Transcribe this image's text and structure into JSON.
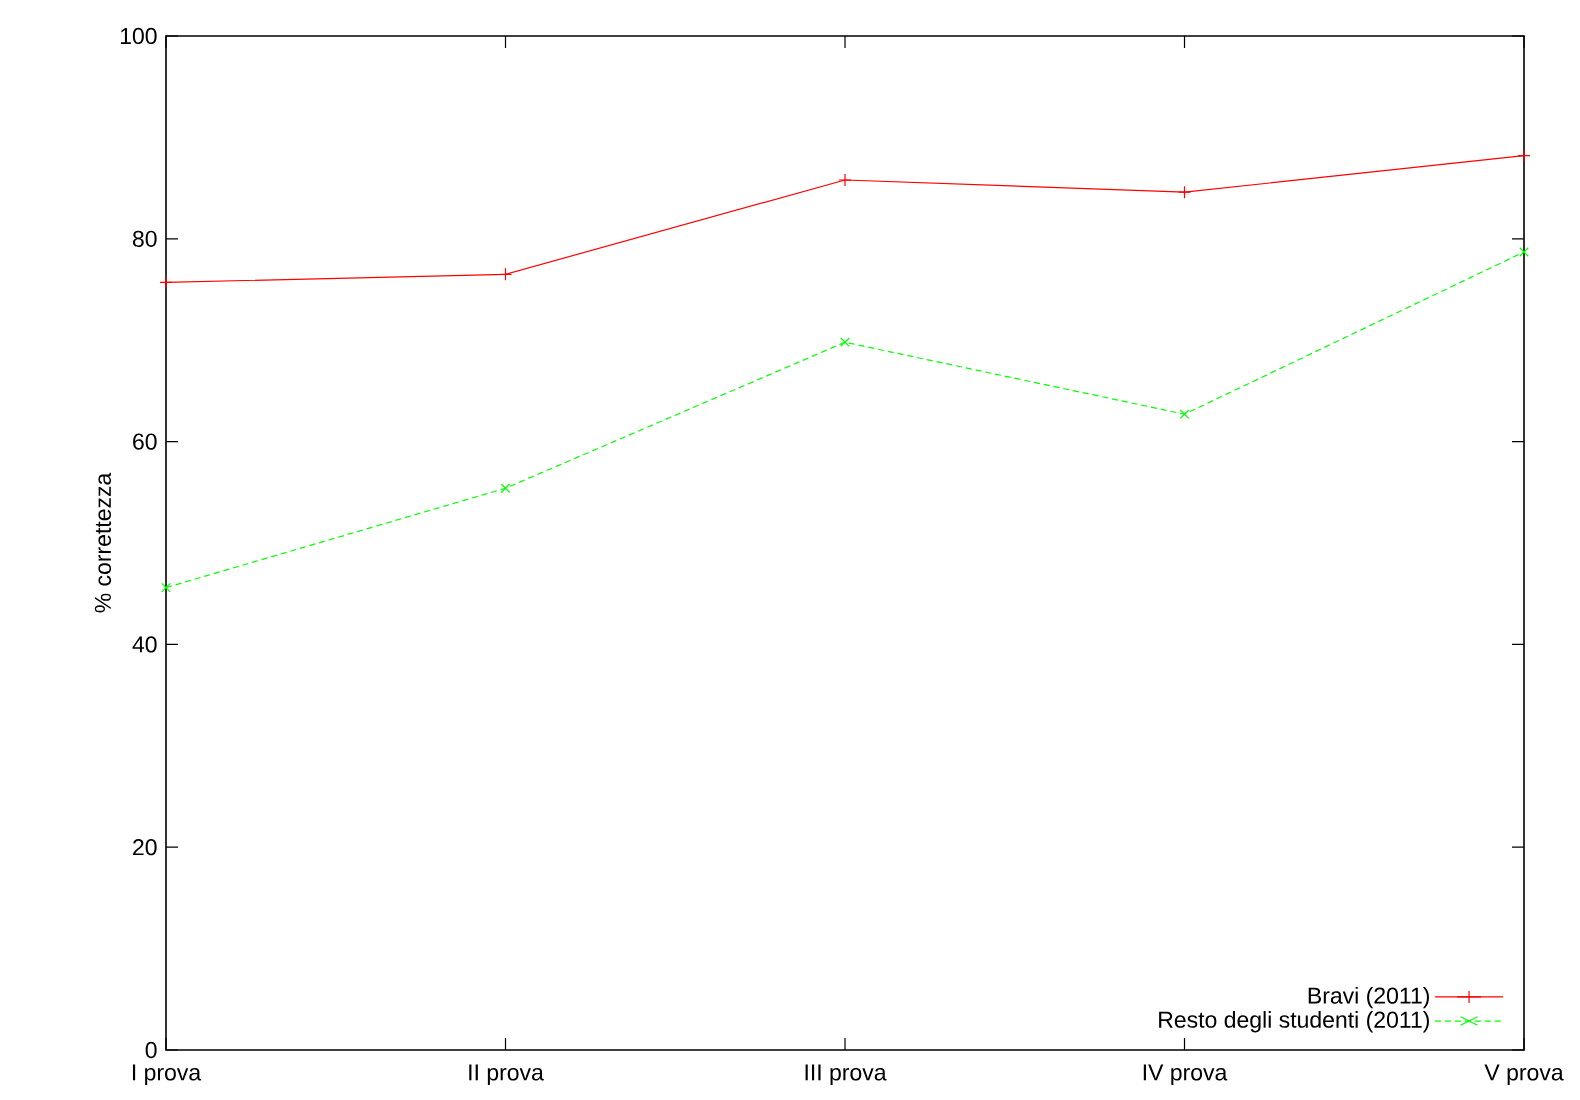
{
  "chart_data": {
    "type": "line",
    "ylabel": "% correttezza",
    "categories": [
      "I prova",
      "II prova",
      "III prova",
      "IV prova",
      "V prova"
    ],
    "ylim": [
      0,
      100
    ],
    "yticks": [
      0,
      20,
      40,
      60,
      80,
      100
    ],
    "series": [
      {
        "name": "Bravi (2011)",
        "color": "#ff0000",
        "marker": "plus",
        "line_style": "solid",
        "values": [
          75.7,
          76.5,
          85.8,
          84.6,
          88.2
        ]
      },
      {
        "name": "Resto degli studenti (2011)",
        "color": "#00ff00",
        "marker": "cross",
        "line_style": "dashed",
        "values": [
          45.6,
          55.4,
          69.8,
          62.7,
          78.7
        ]
      }
    ],
    "legend": "bottom right",
    "grid": false
  }
}
